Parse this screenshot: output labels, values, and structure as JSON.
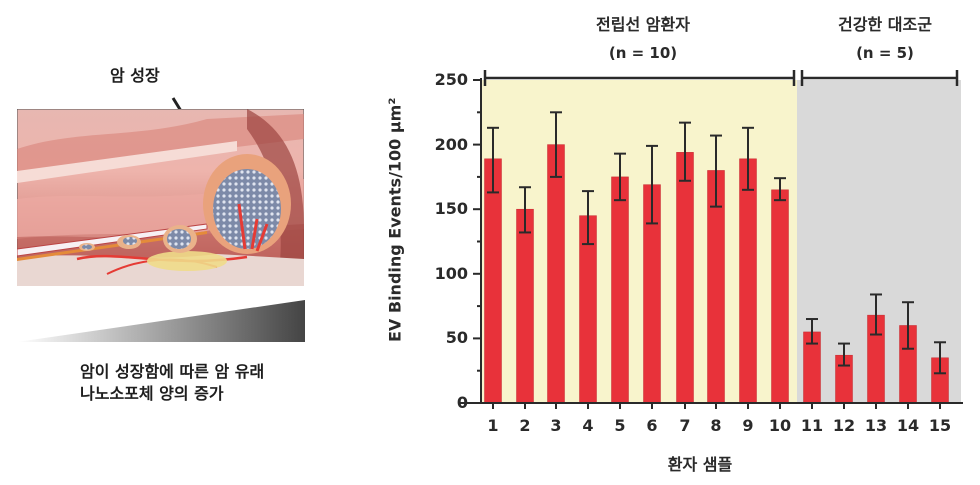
{
  "illustration": {
    "growth_label": "암 성장",
    "caption_line1": "암이 성장함에 따른 암 유래",
    "caption_line2": "나노소포체 양의 증가"
  },
  "groups": {
    "patients": {
      "title": "전립선 암환자",
      "n": "(n = 10)",
      "color": "#f8f4cc"
    },
    "controls": {
      "title": "건강한 대조군",
      "n": "(n = 5)",
      "color": "#d9d9d9"
    }
  },
  "chart_data": {
    "type": "bar",
    "title": "",
    "xlabel": "환자 샘플",
    "ylabel": "EV Binding Events/100 µm²",
    "ylim": [
      0,
      250
    ],
    "yticks": [
      0,
      50,
      100,
      150,
      200,
      250
    ],
    "grid": false,
    "bar_color": "#e8323a",
    "categories": [
      "1",
      "2",
      "3",
      "4",
      "5",
      "6",
      "7",
      "8",
      "9",
      "10",
      "11",
      "12",
      "13",
      "14",
      "15"
    ],
    "values": [
      189,
      150,
      200,
      145,
      175,
      169,
      194,
      180,
      189,
      165,
      55,
      37,
      68,
      60,
      35
    ],
    "error_upper": [
      213,
      167,
      225,
      164,
      193,
      199,
      217,
      207,
      213,
      174,
      65,
      46,
      84,
      78,
      47
    ],
    "error_lower": [
      163,
      132,
      175,
      123,
      157,
      139,
      172,
      152,
      165,
      157,
      46,
      29,
      53,
      42,
      23
    ],
    "group_ranges": [
      {
        "name": "전립선 암환자",
        "n": 10,
        "from": 1,
        "to": 10
      },
      {
        "name": "건강한 대조군",
        "n": 5,
        "from": 11,
        "to": 15
      }
    ]
  }
}
